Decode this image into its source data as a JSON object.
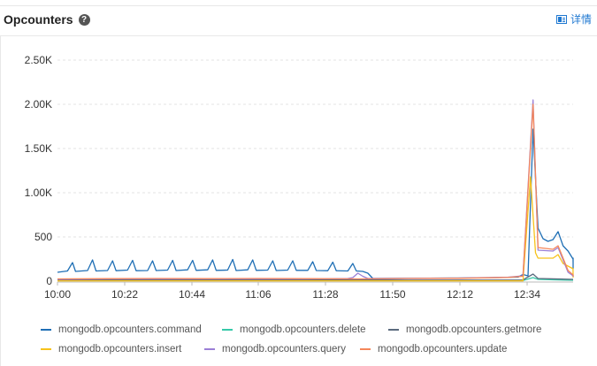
{
  "header": {
    "title": "Opcounters",
    "help_glyph": "?",
    "details_label": "详情"
  },
  "chart_data": {
    "type": "line",
    "title": "Opcounters",
    "x_ticks": [
      "10:00",
      "10:22",
      "10:44",
      "11:06",
      "11:28",
      "11:50",
      "12:12",
      "12:34"
    ],
    "y_ticks": [
      "0",
      "500",
      "1.00K",
      "1.50K",
      "2.00K",
      "2.50K"
    ],
    "ylim": [
      0,
      2500
    ],
    "xlim_minutes": [
      0,
      98
    ],
    "grid": true,
    "legend_position": "bottom",
    "series": [
      {
        "name": "mongodb.opcounters.command",
        "color": "#1f6fb5",
        "points": [
          [
            0,
            100
          ],
          [
            2,
            115
          ],
          [
            3,
            210
          ],
          [
            3.6,
            110
          ],
          [
            6,
            120
          ],
          [
            7,
            240
          ],
          [
            7.7,
            115
          ],
          [
            10,
            120
          ],
          [
            11,
            230
          ],
          [
            11.7,
            118
          ],
          [
            14,
            125
          ],
          [
            15,
            235
          ],
          [
            15.7,
            118
          ],
          [
            18,
            120
          ],
          [
            19,
            230
          ],
          [
            19.7,
            120
          ],
          [
            22,
            125
          ],
          [
            23,
            235
          ],
          [
            23.7,
            120
          ],
          [
            26,
            128
          ],
          [
            27,
            235
          ],
          [
            27.7,
            122
          ],
          [
            30,
            128
          ],
          [
            31,
            240
          ],
          [
            31.7,
            122
          ],
          [
            34,
            125
          ],
          [
            35,
            245
          ],
          [
            35.7,
            120
          ],
          [
            38,
            128
          ],
          [
            39,
            240
          ],
          [
            39.7,
            122
          ],
          [
            42,
            125
          ],
          [
            43,
            230
          ],
          [
            43.7,
            120
          ],
          [
            46,
            125
          ],
          [
            47,
            230
          ],
          [
            47.7,
            122
          ],
          [
            50,
            122
          ],
          [
            51,
            220
          ],
          [
            51.7,
            120
          ],
          [
            54,
            118
          ],
          [
            55,
            215
          ],
          [
            55.7,
            118
          ],
          [
            58,
            115
          ],
          [
            59,
            200
          ],
          [
            59.7,
            115
          ],
          [
            61,
            110
          ],
          [
            62,
            90
          ],
          [
            63,
            30
          ],
          [
            70,
            32
          ],
          [
            80,
            35
          ],
          [
            88,
            40
          ],
          [
            92,
            45
          ],
          [
            93,
            75
          ],
          [
            94,
            60
          ],
          [
            95,
            1720
          ],
          [
            96,
            600
          ],
          [
            97,
            480
          ],
          [
            98,
            450
          ],
          [
            99,
            470
          ],
          [
            100,
            560
          ],
          [
            101,
            400
          ],
          [
            102,
            340
          ],
          [
            103,
            250
          ],
          [
            104,
            200
          ],
          [
            105,
            160
          ],
          [
            106,
            140
          ],
          [
            107,
            250
          ],
          [
            108,
            180
          ],
          [
            109,
            200
          ],
          [
            110,
            260
          ],
          [
            111,
            230
          ],
          [
            112,
            140
          ]
        ]
      },
      {
        "name": "mongodb.opcounters.delete",
        "color": "#36c9a8",
        "points": [
          [
            0,
            8
          ],
          [
            20,
            8
          ],
          [
            40,
            8
          ],
          [
            60,
            8
          ],
          [
            93,
            8
          ],
          [
            95,
            40
          ],
          [
            96,
            20
          ],
          [
            99,
            15
          ],
          [
            112,
            10
          ]
        ]
      },
      {
        "name": "mongodb.opcounters.getmore",
        "color": "#5b6b7e",
        "points": [
          [
            0,
            15
          ],
          [
            20,
            15
          ],
          [
            40,
            15
          ],
          [
            60,
            15
          ],
          [
            62,
            15
          ],
          [
            70,
            12
          ],
          [
            93,
            14
          ],
          [
            95,
            80
          ],
          [
            96,
            30
          ],
          [
            112,
            20
          ]
        ]
      },
      {
        "name": "mongodb.opcounters.insert",
        "color": "#f7c21b",
        "points": [
          [
            0,
            3
          ],
          [
            20,
            3
          ],
          [
            40,
            3
          ],
          [
            60,
            3
          ],
          [
            93,
            3
          ],
          [
            94.5,
            1180
          ],
          [
            95.5,
            320
          ],
          [
            96,
            260
          ],
          [
            99,
            260
          ],
          [
            100,
            300
          ],
          [
            101,
            200
          ],
          [
            103,
            140
          ],
          [
            112,
            40
          ]
        ]
      },
      {
        "name": "mongodb.opcounters.query",
        "color": "#9b7fd6",
        "points": [
          [
            0,
            20
          ],
          [
            10,
            25
          ],
          [
            20,
            25
          ],
          [
            30,
            25
          ],
          [
            40,
            25
          ],
          [
            50,
            25
          ],
          [
            58,
            30
          ],
          [
            59,
            40
          ],
          [
            60,
            90
          ],
          [
            61,
            55
          ],
          [
            62,
            30
          ],
          [
            70,
            32
          ],
          [
            80,
            35
          ],
          [
            90,
            45
          ],
          [
            93,
            60
          ],
          [
            95,
            2050
          ],
          [
            96,
            350
          ],
          [
            99,
            340
          ],
          [
            100,
            380
          ],
          [
            102,
            100
          ],
          [
            104,
            60
          ],
          [
            112,
            50
          ]
        ]
      },
      {
        "name": "mongodb.opcounters.update",
        "color": "#f5875a",
        "points": [
          [
            0,
            25
          ],
          [
            10,
            28
          ],
          [
            20,
            30
          ],
          [
            30,
            28
          ],
          [
            40,
            30
          ],
          [
            50,
            28
          ],
          [
            60,
            25
          ],
          [
            70,
            30
          ],
          [
            80,
            32
          ],
          [
            90,
            42
          ],
          [
            93,
            55
          ],
          [
            95,
            2000
          ],
          [
            96,
            380
          ],
          [
            99,
            360
          ],
          [
            100,
            400
          ],
          [
            102,
            120
          ],
          [
            104,
            70
          ],
          [
            112,
            55
          ]
        ]
      }
    ]
  },
  "legend": [
    [
      {
        "label": "mongodb.opcounters.command",
        "color": "#1f6fb5"
      },
      {
        "label": "mongodb.opcounters.delete",
        "color": "#36c9a8"
      },
      {
        "label": "mongodb.opcounters.getmore",
        "color": "#5b6b7e"
      }
    ],
    [
      {
        "label": "mongodb.opcounters.insert",
        "color": "#f7c21b"
      },
      {
        "label": "mongodb.opcounters.query",
        "color": "#9b7fd6"
      },
      {
        "label": "mongodb.opcounters.update",
        "color": "#f5875a"
      }
    ]
  ]
}
